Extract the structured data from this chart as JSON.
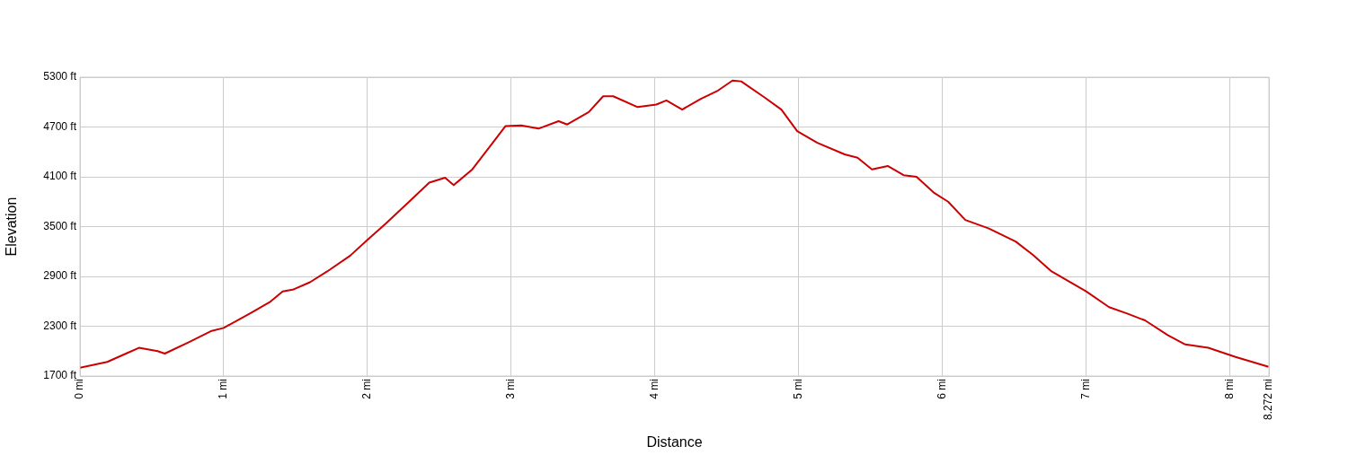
{
  "chart_data": {
    "type": "line",
    "xlabel": "Distance",
    "ylabel": "Elevation",
    "x": [
      0,
      0.19,
      0.32,
      0.41,
      0.54,
      0.59,
      0.76,
      0.91,
      1.0,
      1.19,
      1.32,
      1.41,
      1.48,
      1.6,
      1.72,
      1.88,
      2.0,
      2.13,
      2.29,
      2.43,
      2.54,
      2.6,
      2.73,
      2.85,
      2.96,
      3.07,
      3.19,
      3.33,
      3.39,
      3.54,
      3.64,
      3.71,
      3.88,
      4.01,
      4.08,
      4.19,
      4.32,
      4.44,
      4.54,
      4.6,
      4.76,
      4.88,
      4.99,
      5.13,
      5.32,
      5.41,
      5.51,
      5.62,
      5.73,
      5.82,
      5.94,
      6.04,
      6.16,
      6.32,
      6.51,
      6.63,
      6.76,
      7.0,
      7.16,
      7.29,
      7.41,
      7.57,
      7.69,
      7.85,
      8.04,
      8.27
    ],
    "series": [
      {
        "color": "#cc0000",
        "values": [
          1800,
          1870,
          1970,
          2040,
          2000,
          1970,
          2110,
          2240,
          2280,
          2460,
          2590,
          2720,
          2740,
          2830,
          2960,
          3150,
          3340,
          3540,
          3800,
          4030,
          4090,
          4000,
          4190,
          4460,
          4710,
          4720,
          4680,
          4770,
          4730,
          4880,
          5070,
          5070,
          4940,
          4970,
          5020,
          4910,
          5040,
          5140,
          5260,
          5250,
          5060,
          4910,
          4650,
          4510,
          4370,
          4330,
          4190,
          4230,
          4120,
          4100,
          3910,
          3800,
          3580,
          3480,
          3320,
          3160,
          2960,
          2720,
          2530,
          2450,
          2370,
          2190,
          2080,
          2040,
          1930,
          1810
        ]
      }
    ],
    "xlim": [
      0,
      8.272
    ],
    "xticks": [
      {
        "value": 0,
        "label": "0 mi"
      },
      {
        "value": 1,
        "label": "1 mi"
      },
      {
        "value": 2,
        "label": "2 mi"
      },
      {
        "value": 3,
        "label": "3 mi"
      },
      {
        "value": 4,
        "label": "4 mi"
      },
      {
        "value": 5,
        "label": "5 mi"
      },
      {
        "value": 6,
        "label": "6 mi"
      },
      {
        "value": 7,
        "label": "7 mi"
      },
      {
        "value": 8,
        "label": "8 mi"
      },
      {
        "value": 8.272,
        "label": "8.272 mi"
      }
    ],
    "ylim": [
      1700,
      5300
    ],
    "yticks": [
      {
        "value": 1700,
        "label": "1700 ft"
      },
      {
        "value": 2300,
        "label": "2300 ft"
      },
      {
        "value": 2900,
        "label": "2900 ft"
      },
      {
        "value": 3500,
        "label": "3500 ft"
      },
      {
        "value": 4100,
        "label": "4100 ft"
      },
      {
        "value": 4700,
        "label": "4700 ft"
      },
      {
        "value": 5300,
        "label": "5300 ft"
      }
    ],
    "grid": true,
    "legend": false,
    "marker": "none",
    "line_style": "solid"
  }
}
